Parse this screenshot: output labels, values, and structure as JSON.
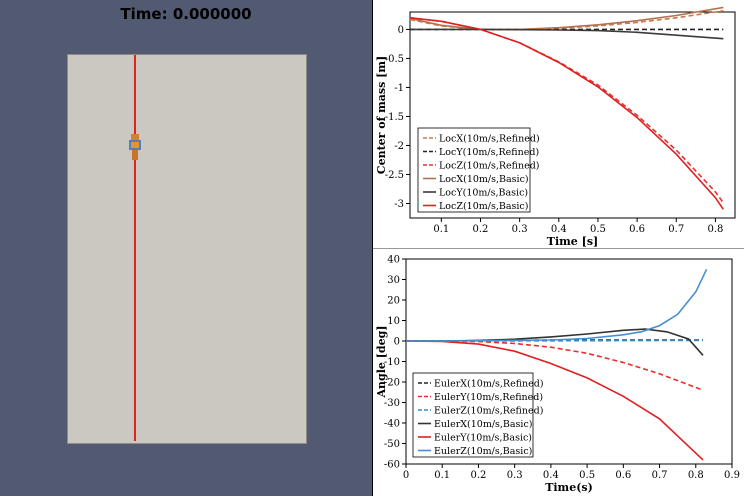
{
  "viewport": {
    "time_label": "Time: 0.000000",
    "background_color": "#525a72",
    "panel_color": "#cbc8c1",
    "rod_color": "#e32218"
  },
  "chart_data": [
    {
      "type": "line",
      "xlabel": "Time [s]",
      "ylabel": "Center of mass [m]",
      "xlim": [
        0.02,
        0.85
      ],
      "ylim": [
        -3.25,
        0.3
      ],
      "xticks": [
        0.1,
        0.2,
        0.3,
        0.4,
        0.5,
        0.6,
        0.7,
        0.8
      ],
      "yticks": [
        0,
        -0.5,
        -1,
        -1.5,
        -2,
        -2.5,
        -3
      ],
      "legend_position": "bottom-left",
      "series": [
        {
          "name": "LocX(10m/s,Refined)",
          "color": "#c87a4a",
          "dash": true,
          "x": [
            0.02,
            0.1,
            0.2,
            0.3,
            0.4,
            0.5,
            0.6,
            0.7,
            0.82
          ],
          "y": [
            0.17,
            0.06,
            0.0,
            0.0,
            0.02,
            0.06,
            0.12,
            0.2,
            0.32
          ]
        },
        {
          "name": "LocY(10m/s,Refined)",
          "color": "#222222",
          "dash": true,
          "x": [
            0.02,
            0.2,
            0.4,
            0.6,
            0.82
          ],
          "y": [
            0.0,
            0.0,
            0.0,
            0.0,
            0.0
          ]
        },
        {
          "name": "LocZ(10m/s,Refined)",
          "color": "#e83030",
          "dash": true,
          "x": [
            0.02,
            0.1,
            0.2,
            0.3,
            0.4,
            0.5,
            0.6,
            0.7,
            0.8,
            0.82
          ],
          "y": [
            0.2,
            0.14,
            0.0,
            -0.23,
            -0.56,
            -0.96,
            -1.48,
            -2.08,
            -2.8,
            -2.99
          ]
        },
        {
          "name": "LocX(10m/s,Basic)",
          "color": "#b5714e",
          "dash": false,
          "x": [
            0.02,
            0.1,
            0.2,
            0.3,
            0.4,
            0.5,
            0.6,
            0.7,
            0.82
          ],
          "y": [
            0.19,
            0.07,
            0.0,
            0.0,
            0.03,
            0.08,
            0.15,
            0.24,
            0.38
          ]
        },
        {
          "name": "LocY(10m/s,Basic)",
          "color": "#3a3a3a",
          "dash": false,
          "x": [
            0.02,
            0.2,
            0.4,
            0.5,
            0.6,
            0.7,
            0.82
          ],
          "y": [
            0.0,
            0.0,
            -0.01,
            -0.02,
            -0.05,
            -0.1,
            -0.16
          ]
        },
        {
          "name": "LocZ(10m/s,Basic)",
          "color": "#e02020",
          "dash": false,
          "x": [
            0.02,
            0.1,
            0.2,
            0.3,
            0.4,
            0.5,
            0.6,
            0.7,
            0.8,
            0.82
          ],
          "y": [
            0.2,
            0.14,
            0.0,
            -0.23,
            -0.57,
            -0.99,
            -1.52,
            -2.15,
            -2.9,
            -3.1
          ]
        }
      ]
    },
    {
      "type": "line",
      "xlabel": "Time(s)",
      "ylabel": "Angle [deg]",
      "xlim": [
        0,
        0.9
      ],
      "ylim": [
        -60,
        40
      ],
      "xticks": [
        0,
        0.1,
        0.2,
        0.3,
        0.4,
        0.5,
        0.6,
        0.7,
        0.8,
        0.9
      ],
      "yticks": [
        40,
        30,
        20,
        10,
        0,
        -10,
        -20,
        -30,
        -40,
        -50,
        -60
      ],
      "legend_position": "bottom-left",
      "series": [
        {
          "name": "EulerX(10m/s,Refined)",
          "color": "#222222",
          "dash": true,
          "x": [
            0,
            0.2,
            0.4,
            0.6,
            0.82
          ],
          "y": [
            0,
            0,
            0.5,
            0.5,
            0.5
          ]
        },
        {
          "name": "EulerY(10m/s,Refined)",
          "color": "#e83030",
          "dash": true,
          "x": [
            0,
            0.1,
            0.2,
            0.3,
            0.4,
            0.5,
            0.6,
            0.7,
            0.82
          ],
          "y": [
            0,
            0,
            -0.3,
            -1.2,
            -3,
            -6,
            -10.5,
            -16,
            -24
          ]
        },
        {
          "name": "EulerZ(10m/s,Refined)",
          "color": "#3a8ac8",
          "dash": true,
          "x": [
            0,
            0.2,
            0.4,
            0.6,
            0.82
          ],
          "y": [
            0,
            0,
            0.1,
            0.2,
            0.3
          ]
        },
        {
          "name": "EulerX(10m/s,Basic)",
          "color": "#333333",
          "dash": false,
          "x": [
            0,
            0.1,
            0.2,
            0.3,
            0.4,
            0.5,
            0.6,
            0.66,
            0.72,
            0.78,
            0.82
          ],
          "y": [
            0,
            0,
            0.3,
            0.9,
            2,
            3.4,
            5.2,
            5.8,
            4.5,
            1,
            -7
          ]
        },
        {
          "name": "EulerY(10m/s,Basic)",
          "color": "#e02020",
          "dash": false,
          "x": [
            0,
            0.1,
            0.2,
            0.3,
            0.4,
            0.5,
            0.6,
            0.7,
            0.82
          ],
          "y": [
            0,
            -0.2,
            -1.5,
            -5,
            -11,
            -18,
            -27,
            -38,
            -58
          ]
        },
        {
          "name": "EulerZ(10m/s,Basic)",
          "color": "#4a8fd0",
          "dash": false,
          "x": [
            0,
            0.2,
            0.4,
            0.5,
            0.6,
            0.65,
            0.7,
            0.75,
            0.8,
            0.83
          ],
          "y": [
            0,
            0.1,
            0.5,
            1.2,
            3,
            4.5,
            7.5,
            13,
            24,
            35
          ]
        }
      ]
    }
  ]
}
